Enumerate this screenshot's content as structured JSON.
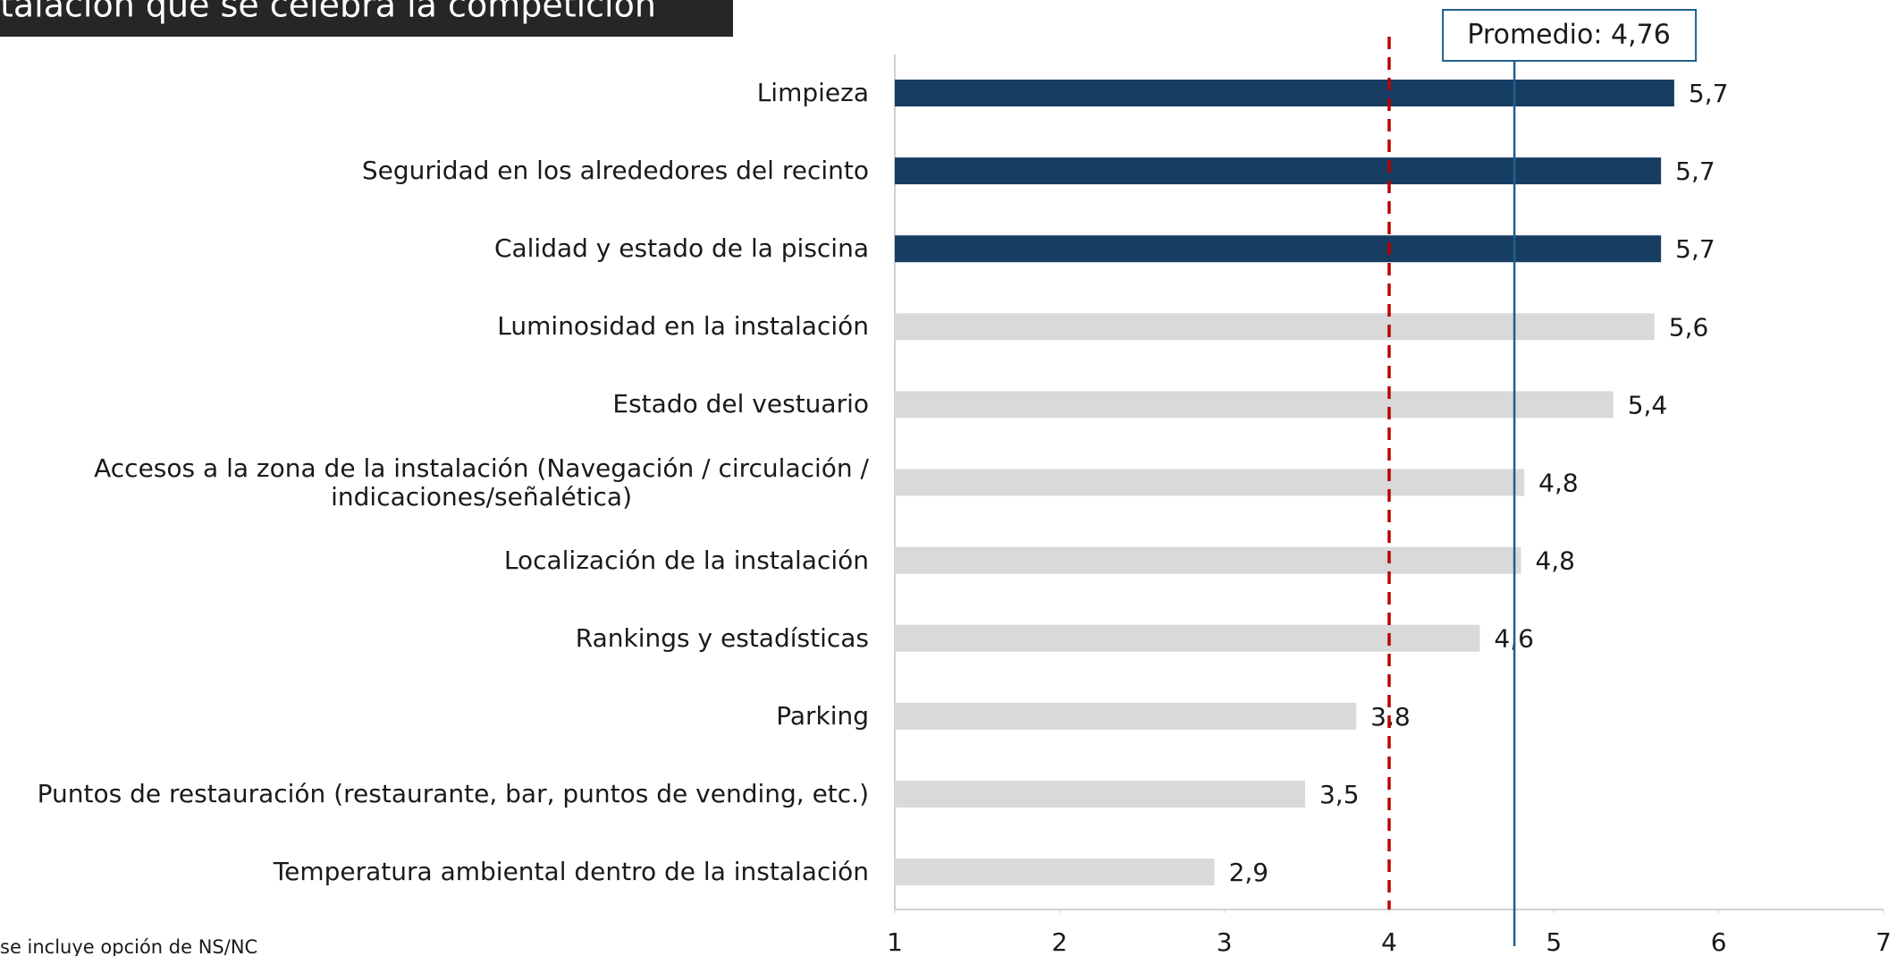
{
  "chart_data": {
    "type": "barh",
    "title": "talación que se celebra la competición",
    "footnote": "se incluye opción de NS/NC",
    "categories": [
      "Limpieza",
      "Seguridad en los alrededores del recinto",
      "Calidad y estado de la piscina",
      "Luminosidad en la instalación",
      "Estado del vestuario",
      "Accesos a la zona de la instalación (Navegación / circulación /\nindicaciones/señalética)",
      "Localización de la instalación",
      "Rankings y estadísticas",
      "Parking",
      "Puntos de restauración (restaurante, bar, puntos de vending, etc.)",
      "Temperatura ambiental dentro de la instalación"
    ],
    "values": [
      5.73,
      5.65,
      5.65,
      5.61,
      5.36,
      4.82,
      4.8,
      4.55,
      3.8,
      3.49,
      2.94
    ],
    "value_labels": [
      "5,7",
      "5,7",
      "5,7",
      "5,6",
      "5,4",
      "4,8",
      "4,8",
      "4,6",
      "3,8",
      "3,5",
      "2,9"
    ],
    "colors": [
      "#173d63",
      "#173d63",
      "#173d63",
      "#d9d9d9",
      "#d9d9d9",
      "#d9d9d9",
      "#d9d9d9",
      "#d9d9d9",
      "#d9d9d9",
      "#d9d9d9",
      "#d9d9d9"
    ],
    "xlim": [
      1,
      7
    ],
    "xticks": [
      1,
      2,
      3,
      4,
      5,
      6,
      7
    ],
    "reference_line": {
      "value": 4,
      "color": "#c00000"
    },
    "average_line": {
      "value": 4.76,
      "label": "Promedio: 4,76",
      "color": "#1f5f8b"
    }
  }
}
